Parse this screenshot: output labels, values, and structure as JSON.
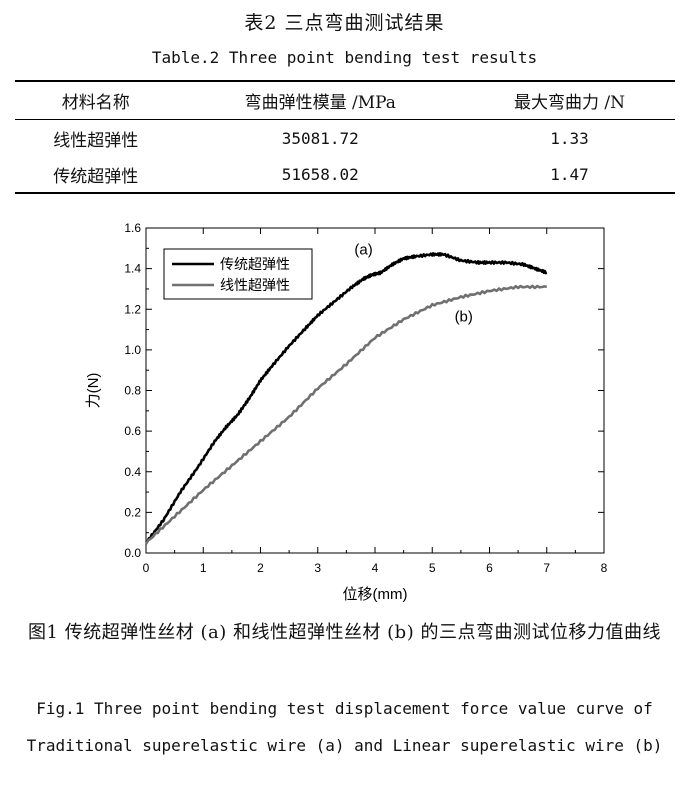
{
  "table": {
    "caption_cn": "表2  三点弯曲测试结果",
    "caption_en": "Table.2  Three point bending test results",
    "headers": [
      "材料名称",
      "弯曲弹性模量 /MPa",
      "最大弯曲力 /N"
    ],
    "rows": [
      [
        "线性超弹性",
        "35081.72",
        "1.33"
      ],
      [
        "传统超弹性",
        "51658.02",
        "1.47"
      ]
    ]
  },
  "figure": {
    "caption_cn": "图1  传统超弹性丝材 (a) 和线性超弹性丝材 (b) 的三点弯曲测试位移力值曲线",
    "caption_en": "Fig.1  Three point bending test displacement force value curve of Traditional superelastic wire (a) and Linear superelastic wire (b)"
  },
  "chart_data": {
    "type": "line",
    "xlabel": "位移(mm)",
    "ylabel": "力(N)",
    "xlim": [
      0,
      8
    ],
    "ylim": [
      0,
      1.6
    ],
    "xticks": [
      "0",
      "1",
      "2",
      "3",
      "4",
      "5",
      "6",
      "7",
      "8"
    ],
    "yticks": [
      "0.0",
      "0.2",
      "0.4",
      "0.6",
      "0.8",
      "1.0",
      "1.2",
      "1.4",
      "1.6"
    ],
    "grid": false,
    "legend_position": "top-left",
    "annotations": [
      "(a)",
      "(b)"
    ],
    "series": [
      {
        "name": "传统超弹性",
        "label": "(a)",
        "color": "#000000",
        "x": [
          0,
          0.3,
          0.6,
          0.9,
          1.2,
          1.4,
          1.6,
          1.8,
          2.0,
          2.2,
          2.5,
          2.8,
          3.0,
          3.3,
          3.6,
          3.8,
          3.95,
          4.1,
          4.3,
          4.5,
          4.7,
          5.0,
          5.2,
          5.5,
          5.8,
          6.0,
          6.3,
          6.6,
          6.8,
          7.0
        ],
        "y": [
          0.05,
          0.16,
          0.3,
          0.42,
          0.55,
          0.62,
          0.68,
          0.76,
          0.85,
          0.92,
          1.02,
          1.11,
          1.17,
          1.24,
          1.31,
          1.35,
          1.37,
          1.38,
          1.42,
          1.45,
          1.46,
          1.47,
          1.47,
          1.44,
          1.43,
          1.43,
          1.43,
          1.42,
          1.4,
          1.38
        ]
      },
      {
        "name": "线性超弹性",
        "label": "(b)",
        "color": "#707070",
        "x": [
          0,
          0.5,
          1.0,
          1.5,
          2.0,
          2.5,
          3.0,
          3.5,
          4.0,
          4.5,
          5.0,
          5.5,
          6.0,
          6.5,
          7.0
        ],
        "y": [
          0.05,
          0.18,
          0.31,
          0.43,
          0.55,
          0.67,
          0.81,
          0.93,
          1.06,
          1.15,
          1.22,
          1.26,
          1.29,
          1.31,
          1.31
        ]
      }
    ]
  }
}
